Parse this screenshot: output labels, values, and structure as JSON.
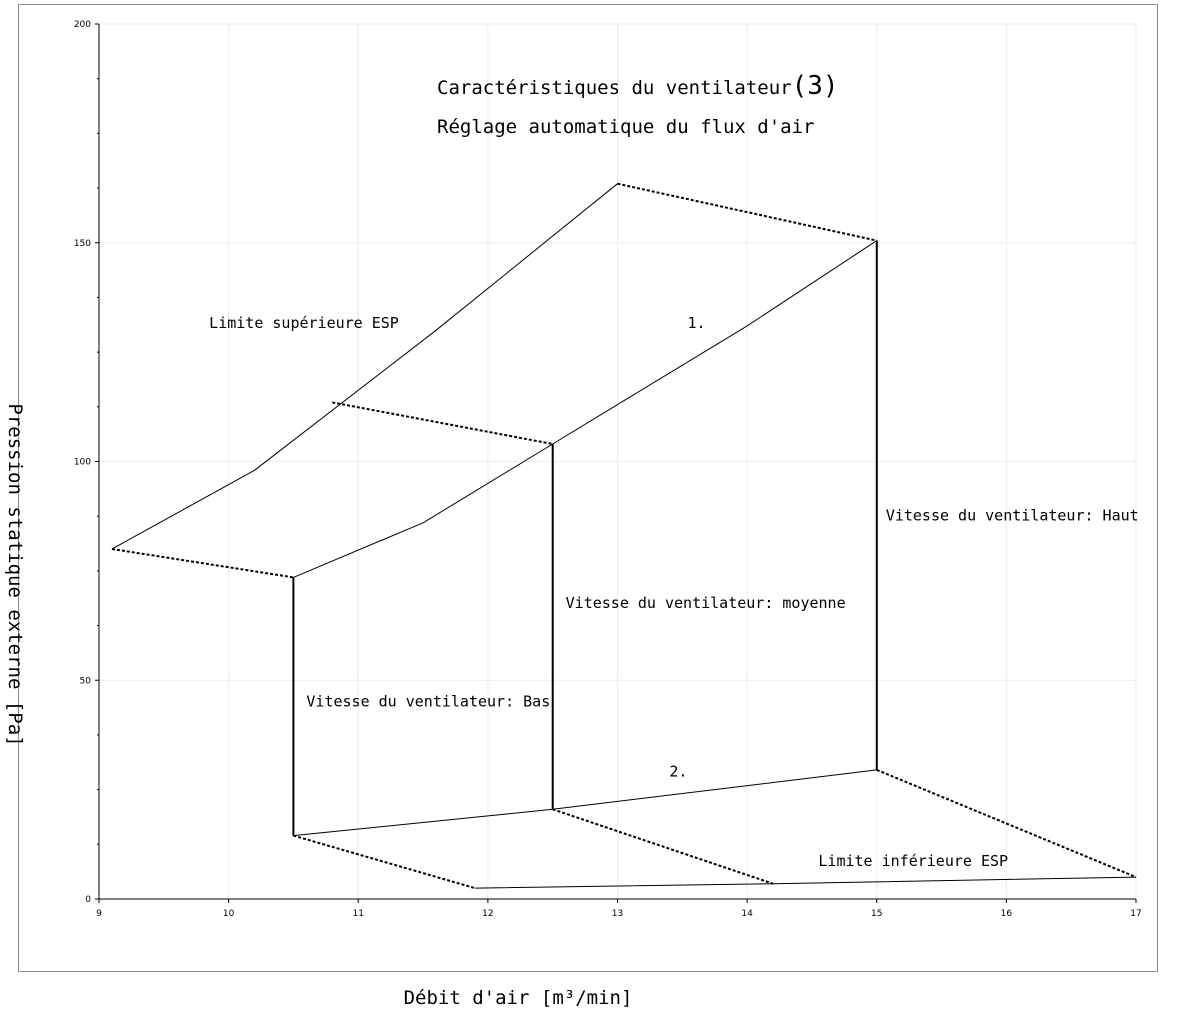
{
  "chart_data": {
    "type": "line",
    "title": "Caractéristiques du ventilateur",
    "title_suffix": "(3)",
    "subtitle": "Réglage automatique du flux d'air",
    "xlabel": "Débit d'air [m³/min]",
    "ylabel": "Pression statique externe [Pa]",
    "xlim": [
      9,
      17
    ],
    "ylim": [
      0,
      200
    ],
    "xticks": [
      9,
      10,
      11,
      12,
      13,
      14,
      15,
      16,
      17
    ],
    "yticks": [
      0,
      50,
      100,
      150,
      200
    ],
    "grid": true,
    "series": [
      {
        "id": "esp-upper",
        "style": "solid",
        "width": 1,
        "points": [
          [
            9.1,
            80
          ],
          [
            10.2,
            98
          ],
          [
            11.6,
            130
          ],
          [
            13.0,
            163.5
          ]
        ]
      },
      {
        "id": "fan-upper",
        "style": "solid",
        "width": 1,
        "points": [
          [
            10.5,
            73.5
          ],
          [
            11.5,
            86
          ],
          [
            12.5,
            104
          ],
          [
            13.0,
            113
          ],
          [
            14.0,
            131
          ],
          [
            15.0,
            150.5
          ]
        ]
      },
      {
        "id": "fan-lower",
        "style": "solid",
        "width": 1,
        "points": [
          [
            10.5,
            14.5
          ],
          [
            12.5,
            20.5
          ],
          [
            15.0,
            29.5
          ]
        ]
      },
      {
        "id": "esp-lower",
        "style": "solid",
        "width": 1,
        "points": [
          [
            11.9,
            2.5
          ],
          [
            14.2,
            3.5
          ],
          [
            17.0,
            5
          ]
        ]
      },
      {
        "id": "connector-top-1",
        "style": "dashed",
        "width": 2,
        "points": [
          [
            9.1,
            80
          ],
          [
            10.5,
            73.5
          ]
        ]
      },
      {
        "id": "connector-top-2",
        "style": "dashed",
        "width": 2,
        "points": [
          [
            10.8,
            113.5
          ],
          [
            12.5,
            104
          ]
        ]
      },
      {
        "id": "connector-top-3",
        "style": "dashed",
        "width": 2,
        "points": [
          [
            13.0,
            163.5
          ],
          [
            15.0,
            150.5
          ]
        ]
      },
      {
        "id": "connector-bottom-1",
        "style": "dashed",
        "width": 2,
        "points": [
          [
            10.5,
            14.5
          ],
          [
            11.9,
            2.5
          ]
        ]
      },
      {
        "id": "connector-bottom-2",
        "style": "dashed",
        "width": 2,
        "points": [
          [
            12.5,
            20.5
          ],
          [
            14.2,
            3.5
          ]
        ]
      },
      {
        "id": "connector-bottom-3",
        "style": "dashed",
        "width": 2,
        "points": [
          [
            15.0,
            29.5
          ],
          [
            17.0,
            5
          ]
        ]
      },
      {
        "id": "speed-low",
        "style": "solid",
        "width": 2,
        "points": [
          [
            10.5,
            14.5
          ],
          [
            10.5,
            73.5
          ]
        ]
      },
      {
        "id": "speed-mid",
        "style": "solid",
        "width": 2,
        "points": [
          [
            12.5,
            20.5
          ],
          [
            12.5,
            104
          ]
        ]
      },
      {
        "id": "speed-high",
        "style": "solid",
        "width": 2,
        "points": [
          [
            15.0,
            29.5
          ],
          [
            15.0,
            150.5
          ]
        ]
      }
    ],
    "annotations": [
      {
        "id": "label-esp-upper",
        "text": "Limite supérieure ESP",
        "x": 9.85,
        "y": 130.5
      },
      {
        "id": "label-region-1",
        "text": "1.",
        "x": 13.54,
        "y": 130.5
      },
      {
        "id": "label-speed-high",
        "text": "Vitesse du ventilateur: Haut",
        "x": 15.07,
        "y": 86.5
      },
      {
        "id": "label-speed-mid",
        "text": "Vitesse du ventilateur: moyenne",
        "x": 12.6,
        "y": 66.5
      },
      {
        "id": "label-speed-low",
        "text": "Vitesse du ventilateur: Bas",
        "x": 10.6,
        "y": 44
      },
      {
        "id": "label-region-2",
        "text": "2.",
        "x": 13.4,
        "y": 28
      },
      {
        "id": "label-esp-lower",
        "text": "Limite inférieure ESP",
        "x": 14.55,
        "y": 7.5
      }
    ]
  }
}
